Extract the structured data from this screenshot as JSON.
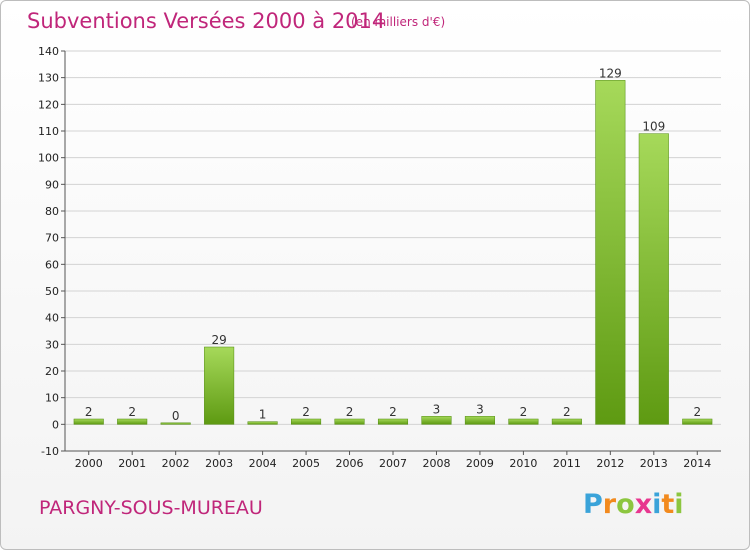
{
  "title": "Subventions Versées 2000 à 2014",
  "subtitle": "(en milliers d'€)",
  "commune": "PARGNY-SOUS-MUREAU",
  "logo": {
    "text": "Proxiti",
    "colors": [
      "#3aa3d9",
      "#f28a1e",
      "#8cc63f",
      "#e8368f"
    ]
  },
  "colors": {
    "accent": "#c0267a",
    "bar_light": "#9fd24e",
    "bar_dark": "#5e9a12",
    "grid": "#d0d0d0"
  },
  "chart_data": {
    "type": "bar",
    "categories": [
      "2000",
      "2001",
      "2002",
      "2003",
      "2004",
      "2005",
      "2006",
      "2007",
      "2008",
      "2009",
      "2010",
      "2011",
      "2012",
      "2013",
      "2014"
    ],
    "values": [
      2,
      2,
      0,
      29,
      1,
      2,
      2,
      2,
      3,
      3,
      2,
      2,
      129,
      109,
      2
    ],
    "data_labels": [
      "2",
      "2",
      "0",
      "29",
      "1",
      "2",
      "2",
      "2",
      "3",
      "3",
      "2",
      "2",
      "129",
      "109",
      "2"
    ],
    "ylim": [
      -10,
      140
    ],
    "yticks": [
      -10,
      0,
      10,
      20,
      30,
      40,
      50,
      60,
      70,
      80,
      90,
      100,
      110,
      120,
      130,
      140
    ],
    "ytick_labels": [
      "-10",
      "0",
      "10",
      "20",
      "30",
      "40",
      "50",
      "60",
      "70",
      "80",
      "90",
      "100",
      "110",
      "120",
      "130",
      "140"
    ],
    "grid": true,
    "legend": "none"
  }
}
